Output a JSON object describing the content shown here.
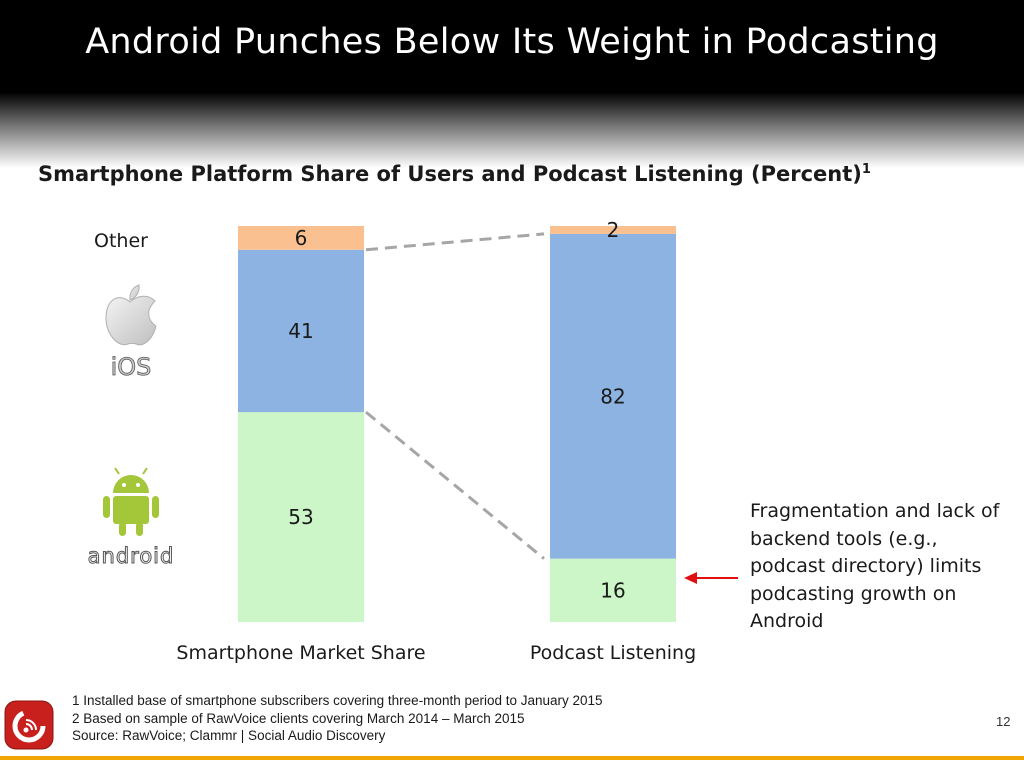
{
  "slide": {
    "title": "Android Punches Below Its Weight in Podcasting",
    "subtitle": "Smartphone Platform Share of Users and Podcast Listening (Percent)",
    "subtitle_sup": "1",
    "other_label": "Other",
    "ios_logo_text": "iOS",
    "android_logo_text": "android",
    "annotation": "Fragmentation and lack of backend tools (e.g., podcast directory) limits podcasting growth on Android",
    "footnotes": [
      "1 Installed base of smartphone subscribers covering three-month period to January 2015",
      "2 Based on sample of RawVoice clients covering March 2014 – March 2015",
      "Source: RawVoice; Clammr | Social Audio Discovery"
    ],
    "page_number": "12"
  },
  "chart_data": {
    "type": "bar",
    "stacked": true,
    "categories": [
      "Smartphone Market Share",
      "Podcast Listening"
    ],
    "series": [
      {
        "name": "Android",
        "values": [
          53,
          16
        ],
        "color": "#ccf5c8"
      },
      {
        "name": "iOS",
        "values": [
          41,
          82
        ],
        "color": "#8db3e2"
      },
      {
        "name": "Other",
        "values": [
          6,
          2
        ],
        "color": "#fac090"
      }
    ],
    "ylim": [
      0,
      100
    ],
    "grid": false,
    "connector_lines": "dashed",
    "annotation_arrow_color": "#e01010",
    "label_color": "#1a1a1a"
  }
}
